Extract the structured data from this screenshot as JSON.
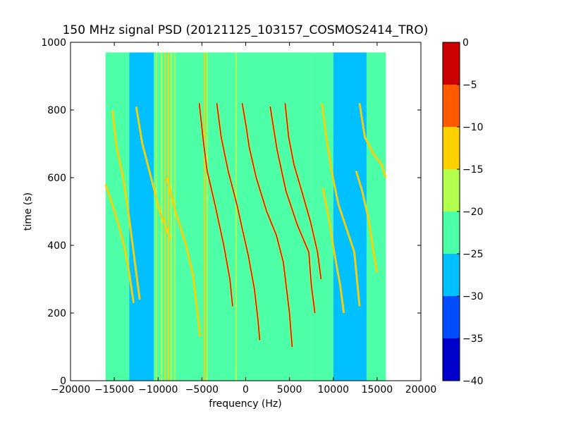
{
  "chart_data": {
    "type": "heatmap",
    "title": "150 MHz signal PSD (20121125_103157_COSMOS2414_TRO)",
    "xlabel": "frequency (Hz)",
    "ylabel": "time (s)",
    "xlim": [
      -20000,
      20000
    ],
    "ylim": [
      0,
      1000
    ],
    "xticks": [
      -20000,
      -15000,
      -10000,
      -5000,
      0,
      5000,
      10000,
      15000,
      20000
    ],
    "xtick_labels": [
      "−20000",
      "−15000",
      "−10000",
      "−5000",
      "0",
      "5000",
      "10000",
      "15000",
      "20000"
    ],
    "yticks": [
      0,
      200,
      400,
      600,
      800,
      1000
    ],
    "ytick_labels": [
      "0",
      "200",
      "400",
      "600",
      "800",
      "1000"
    ],
    "data_extent": {
      "x": [
        -16000,
        16000
      ],
      "y": [
        0,
        970
      ]
    },
    "colorbar": {
      "min": -40,
      "max": 0,
      "ticks": [
        0,
        -5,
        -10,
        -15,
        -20,
        -25,
        -30,
        -35,
        -40
      ],
      "tick_labels": [
        "0",
        "−5",
        "−10",
        "−15",
        "−20",
        "−25",
        "−30",
        "−35",
        "−40"
      ],
      "levels": [
        {
          "from": -40,
          "to": -35,
          "color": "#0000cc"
        },
        {
          "from": -35,
          "to": -30,
          "color": "#004cff"
        },
        {
          "from": -30,
          "to": -25,
          "color": "#00c0ff"
        },
        {
          "from": -25,
          "to": -20,
          "color": "#4dffa6"
        },
        {
          "from": -20,
          "to": -15,
          "color": "#b3ff4d"
        },
        {
          "from": -15,
          "to": -10,
          "color": "#ffd000"
        },
        {
          "from": -10,
          "to": -5,
          "color": "#ff5a00"
        },
        {
          "from": -5,
          "to": 0,
          "color": "#cc0000"
        }
      ]
    },
    "bands": [
      {
        "x": [
          -16000,
          -13300
        ],
        "level": -22,
        "color": "#4dffa6"
      },
      {
        "x": [
          -13300,
          -10500
        ],
        "level": -27,
        "color": "#00c0ff"
      },
      {
        "x": [
          -10500,
          7500
        ],
        "level": -22,
        "color": "#4dffa6"
      },
      {
        "x": [
          7500,
          10000
        ],
        "level": -24,
        "color": "#4dffa6"
      },
      {
        "x": [
          10000,
          13800
        ],
        "level": -27,
        "color": "#00c0ff"
      },
      {
        "x": [
          13800,
          16000
        ],
        "level": -22,
        "color": "#4dffa6"
      }
    ],
    "vertical_lines": [
      {
        "x": -10200,
        "level": -18
      },
      {
        "x": -9600,
        "level": -18
      },
      {
        "x": -9200,
        "level": -12
      },
      {
        "x": -8800,
        "level": -12
      },
      {
        "x": -8500,
        "level": -18
      },
      {
        "x": -8100,
        "level": -18
      },
      {
        "x": -4700,
        "level": -15
      },
      {
        "x": -4400,
        "level": -18
      },
      {
        "x": -1100,
        "level": -18
      }
    ],
    "tracks": [
      {
        "name": "",
        "level": -12,
        "points": [
          [
            -15200,
            800
          ],
          [
            -14800,
            700
          ],
          [
            -14000,
            600
          ],
          [
            -13400,
            500
          ],
          [
            -12900,
            400
          ],
          [
            -12400,
            300
          ],
          [
            -12100,
            240
          ]
        ]
      },
      {
        "name": "",
        "level": -15,
        "points": [
          [
            -16000,
            580
          ],
          [
            -15200,
            520
          ],
          [
            -14500,
            460
          ],
          [
            -13800,
            390
          ],
          [
            -13300,
            320
          ],
          [
            -12800,
            230
          ]
        ]
      },
      {
        "name": "",
        "level": -12,
        "points": [
          [
            -12500,
            810
          ],
          [
            -11800,
            700
          ],
          [
            -10800,
            600
          ],
          [
            -9800,
            500
          ],
          [
            -8600,
            420
          ]
        ]
      },
      {
        "name": "",
        "level": -15,
        "points": [
          [
            -9000,
            600
          ],
          [
            -8000,
            500
          ],
          [
            -6800,
            400
          ],
          [
            -6000,
            310
          ],
          [
            -5500,
            200
          ],
          [
            -5200,
            130
          ]
        ]
      },
      {
        "name": "",
        "level": -5,
        "points": [
          [
            -5300,
            820
          ],
          [
            -4800,
            700
          ],
          [
            -4400,
            620
          ],
          [
            -3500,
            520
          ],
          [
            -2500,
            400
          ],
          [
            -1800,
            300
          ],
          [
            -1500,
            220
          ]
        ]
      },
      {
        "name": "",
        "level": -5,
        "points": [
          [
            -3300,
            820
          ],
          [
            -2800,
            720
          ],
          [
            -2000,
            620
          ],
          [
            -1000,
            520
          ],
          [
            -400,
            450
          ],
          [
            300,
            370
          ],
          [
            1000,
            270
          ],
          [
            1400,
            180
          ],
          [
            1600,
            120
          ]
        ]
      },
      {
        "name": "",
        "level": -5,
        "points": [
          [
            -400,
            820
          ],
          [
            0,
            760
          ],
          [
            400,
            690
          ],
          [
            1200,
            600
          ],
          [
            2400,
            500
          ],
          [
            3500,
            430
          ],
          [
            4300,
            350
          ],
          [
            5000,
            200
          ],
          [
            5300,
            100
          ]
        ]
      },
      {
        "name": "",
        "level": -5,
        "points": [
          [
            2800,
            810
          ],
          [
            3100,
            760
          ],
          [
            3600,
            680
          ],
          [
            4600,
            560
          ],
          [
            5900,
            460
          ],
          [
            7200,
            380
          ],
          [
            7500,
            280
          ],
          [
            7900,
            200
          ]
        ]
      },
      {
        "name": "",
        "level": -5,
        "points": [
          [
            4500,
            820
          ],
          [
            4900,
            720
          ],
          [
            5500,
            640
          ],
          [
            6400,
            560
          ],
          [
            7400,
            470
          ],
          [
            8200,
            380
          ],
          [
            8600,
            300
          ]
        ]
      },
      {
        "name": "",
        "level": -12,
        "points": [
          [
            8700,
            820
          ],
          [
            9200,
            720
          ],
          [
            9800,
            620
          ],
          [
            10600,
            520
          ],
          [
            11500,
            450
          ],
          [
            12400,
            380
          ],
          [
            12700,
            300
          ],
          [
            13000,
            220
          ]
        ]
      },
      {
        "name": "",
        "level": -15,
        "points": [
          [
            8800,
            570
          ],
          [
            9500,
            480
          ],
          [
            10100,
            380
          ],
          [
            10800,
            280
          ],
          [
            11200,
            200
          ]
        ]
      },
      {
        "name": "",
        "level": -12,
        "points": [
          [
            13000,
            820
          ],
          [
            13600,
            720
          ],
          [
            14600,
            670
          ],
          [
            15500,
            640
          ],
          [
            16000,
            600
          ]
        ]
      },
      {
        "name": "",
        "level": -15,
        "points": [
          [
            12600,
            620
          ],
          [
            13300,
            560
          ],
          [
            14000,
            480
          ],
          [
            14600,
            380
          ],
          [
            15000,
            320
          ]
        ]
      }
    ]
  }
}
